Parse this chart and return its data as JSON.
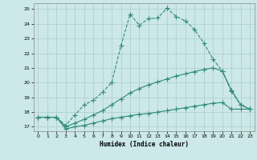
{
  "xlabel": "Humidex (Indice chaleur)",
  "bg_color": "#cce8e8",
  "grid_color": "#aacccc",
  "line_color": "#2e8b7a",
  "ylim": [
    16.7,
    25.4
  ],
  "xlim": [
    -0.5,
    23.5
  ],
  "yticks": [
    17,
    18,
    19,
    20,
    21,
    22,
    23,
    24,
    25
  ],
  "xticks": [
    0,
    1,
    2,
    3,
    4,
    5,
    6,
    7,
    8,
    9,
    10,
    11,
    12,
    13,
    14,
    15,
    16,
    17,
    18,
    19,
    20,
    21,
    22,
    23
  ],
  "series1_x": [
    0,
    1,
    2,
    3,
    4,
    5,
    6,
    7,
    8,
    9,
    10,
    11,
    12,
    13,
    14,
    15,
    16,
    17,
    18,
    19,
    20,
    21,
    22,
    23
  ],
  "series1_y": [
    17.65,
    17.65,
    17.65,
    16.85,
    17.0,
    17.1,
    17.25,
    17.4,
    17.55,
    17.65,
    17.75,
    17.85,
    17.9,
    18.0,
    18.1,
    18.2,
    18.3,
    18.4,
    18.5,
    18.6,
    18.65,
    18.2,
    18.2,
    18.2
  ],
  "series2_x": [
    0,
    1,
    2,
    3,
    4,
    5,
    6,
    7,
    8,
    9,
    10,
    11,
    12,
    13,
    14,
    15,
    16,
    17,
    18,
    19,
    20,
    21,
    22,
    23
  ],
  "series2_y": [
    17.65,
    17.65,
    17.65,
    17.0,
    17.25,
    17.5,
    17.8,
    18.1,
    18.5,
    18.9,
    19.3,
    19.6,
    19.85,
    20.05,
    20.25,
    20.45,
    20.6,
    20.75,
    20.9,
    21.0,
    20.8,
    19.5,
    18.5,
    18.2
  ],
  "series3_x": [
    0,
    1,
    2,
    3,
    4,
    5,
    6,
    7,
    8,
    9,
    10,
    11,
    12,
    13,
    14,
    15,
    16,
    17,
    18,
    19,
    20,
    21,
    22,
    23
  ],
  "series3_y": [
    17.65,
    17.65,
    17.65,
    17.1,
    17.8,
    18.5,
    18.8,
    19.35,
    20.0,
    22.5,
    24.65,
    23.9,
    24.35,
    24.4,
    25.05,
    24.5,
    24.2,
    23.6,
    22.7,
    21.6,
    20.8,
    19.4,
    18.5,
    18.2
  ]
}
